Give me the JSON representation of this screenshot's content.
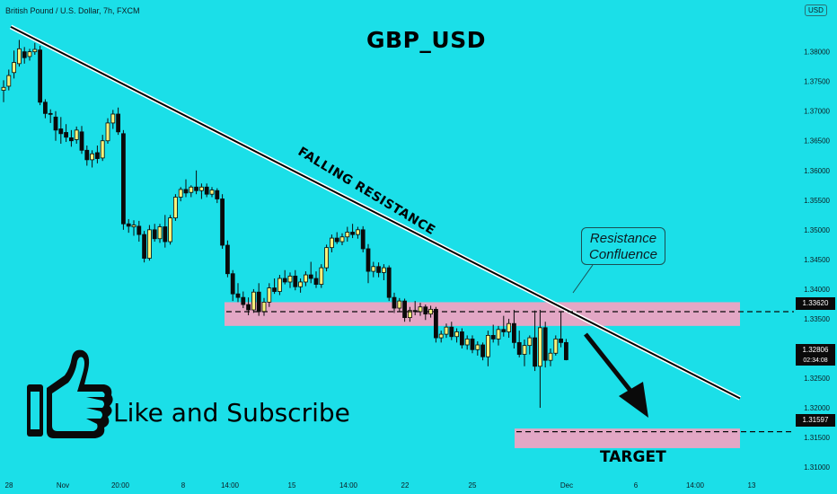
{
  "header": {
    "symbol": "British Pound / U.S. Dollar, 7h, FXCM",
    "currency": "USD",
    "title": "GBP_USD"
  },
  "annotations": {
    "falling_resistance": "FALLING RESISTANCE",
    "callout_line1": "Resistance",
    "callout_line2": "Confluence",
    "like": "Like and Subscribe",
    "target": "TARGET"
  },
  "price_tags": {
    "resistance": "1.33620",
    "current": "1.32806",
    "countdown": "02:34:08",
    "target": "1.31597"
  },
  "colors": {
    "background": "#1bdfe8",
    "candle_up": "#f7f27a",
    "candle_down": "#0a0a0a",
    "zone": "#e3a7c5",
    "trendline": "#000000"
  },
  "icons": [
    "thumbs-up-icon",
    "arrow-down-icon"
  ],
  "chart_data": {
    "type": "candlestick",
    "ylim": [
      1.3085,
      1.386
    ],
    "y_ticks": [
      "1.38000",
      "1.37500",
      "1.37000",
      "1.36500",
      "1.36000",
      "1.35500",
      "1.35000",
      "1.34500",
      "1.34000",
      "1.33500",
      "1.33000",
      "1.32500",
      "1.32000",
      "1.31500",
      "1.31000"
    ],
    "x_ticks": [
      "28",
      "Nov",
      "20:00",
      "8",
      "14:00",
      "15",
      "14:00",
      "22",
      "25",
      "Dec",
      "6",
      "14:00",
      "13"
    ],
    "resistance_level": 1.3362,
    "target_level": 1.31597,
    "current_price": 1.32806,
    "resistance_zone": [
      1.3338,
      1.3378
    ],
    "target_zone": [
      1.3132,
      1.3165
    ],
    "trendline": [
      {
        "bar": 0,
        "price": 1.3842
      },
      {
        "bar": 125,
        "price": 1.3216
      }
    ],
    "candles": [
      {
        "o": 1.3735,
        "h": 1.3752,
        "l": 1.3715,
        "c": 1.374
      },
      {
        "o": 1.3742,
        "h": 1.377,
        "l": 1.3735,
        "c": 1.376
      },
      {
        "o": 1.3765,
        "h": 1.3802,
        "l": 1.3755,
        "c": 1.3782
      },
      {
        "o": 1.378,
        "h": 1.382,
        "l": 1.3775,
        "c": 1.3805
      },
      {
        "o": 1.38,
        "h": 1.3808,
        "l": 1.378,
        "c": 1.379
      },
      {
        "o": 1.3792,
        "h": 1.3805,
        "l": 1.3785,
        "c": 1.38
      },
      {
        "o": 1.38,
        "h": 1.3815,
        "l": 1.3795,
        "c": 1.3804
      },
      {
        "o": 1.3803,
        "h": 1.381,
        "l": 1.371,
        "c": 1.3715
      },
      {
        "o": 1.3715,
        "h": 1.372,
        "l": 1.3688,
        "c": 1.3696
      },
      {
        "o": 1.3696,
        "h": 1.3703,
        "l": 1.368,
        "c": 1.3695
      },
      {
        "o": 1.369,
        "h": 1.37,
        "l": 1.365,
        "c": 1.3668
      },
      {
        "o": 1.367,
        "h": 1.369,
        "l": 1.3645,
        "c": 1.3662
      },
      {
        "o": 1.3664,
        "h": 1.3678,
        "l": 1.3648,
        "c": 1.3656
      },
      {
        "o": 1.3655,
        "h": 1.3668,
        "l": 1.364,
        "c": 1.365
      },
      {
        "o": 1.3652,
        "h": 1.3674,
        "l": 1.3645,
        "c": 1.3668
      },
      {
        "o": 1.3665,
        "h": 1.3675,
        "l": 1.3628,
        "c": 1.3634
      },
      {
        "o": 1.3634,
        "h": 1.3642,
        "l": 1.3608,
        "c": 1.3618
      },
      {
        "o": 1.3618,
        "h": 1.3634,
        "l": 1.3605,
        "c": 1.3628
      },
      {
        "o": 1.363,
        "h": 1.3642,
        "l": 1.3612,
        "c": 1.362
      },
      {
        "o": 1.3621,
        "h": 1.366,
        "l": 1.3616,
        "c": 1.365
      },
      {
        "o": 1.365,
        "h": 1.3688,
        "l": 1.3645,
        "c": 1.368
      },
      {
        "o": 1.368,
        "h": 1.3702,
        "l": 1.367,
        "c": 1.3695
      },
      {
        "o": 1.3695,
        "h": 1.3706,
        "l": 1.366,
        "c": 1.3665
      },
      {
        "o": 1.3662,
        "h": 1.3668,
        "l": 1.35,
        "c": 1.351
      },
      {
        "o": 1.351,
        "h": 1.3518,
        "l": 1.3495,
        "c": 1.3506
      },
      {
        "o": 1.3505,
        "h": 1.3516,
        "l": 1.349,
        "c": 1.3508
      },
      {
        "o": 1.3506,
        "h": 1.3515,
        "l": 1.348,
        "c": 1.3492
      },
      {
        "o": 1.3492,
        "h": 1.3498,
        "l": 1.3445,
        "c": 1.3452
      },
      {
        "o": 1.3452,
        "h": 1.3508,
        "l": 1.3448,
        "c": 1.35
      },
      {
        "o": 1.35,
        "h": 1.351,
        "l": 1.348,
        "c": 1.3485
      },
      {
        "o": 1.3485,
        "h": 1.351,
        "l": 1.3478,
        "c": 1.3505
      },
      {
        "o": 1.3505,
        "h": 1.3525,
        "l": 1.347,
        "c": 1.348
      },
      {
        "o": 1.348,
        "h": 1.3525,
        "l": 1.3475,
        "c": 1.352
      },
      {
        "o": 1.352,
        "h": 1.356,
        "l": 1.3515,
        "c": 1.3555
      },
      {
        "o": 1.3555,
        "h": 1.3572,
        "l": 1.3548,
        "c": 1.3568
      },
      {
        "o": 1.3568,
        "h": 1.3585,
        "l": 1.3555,
        "c": 1.3562
      },
      {
        "o": 1.3563,
        "h": 1.3575,
        "l": 1.3555,
        "c": 1.3572
      },
      {
        "o": 1.3572,
        "h": 1.36,
        "l": 1.356,
        "c": 1.3566
      },
      {
        "o": 1.3566,
        "h": 1.3578,
        "l": 1.3552,
        "c": 1.3572
      },
      {
        "o": 1.3572,
        "h": 1.3578,
        "l": 1.3555,
        "c": 1.356
      },
      {
        "o": 1.356,
        "h": 1.3572,
        "l": 1.3555,
        "c": 1.3567
      },
      {
        "o": 1.3566,
        "h": 1.357,
        "l": 1.3545,
        "c": 1.3552
      },
      {
        "o": 1.3552,
        "h": 1.356,
        "l": 1.3468,
        "c": 1.3474
      },
      {
        "o": 1.3474,
        "h": 1.3482,
        "l": 1.342,
        "c": 1.3426
      },
      {
        "o": 1.3426,
        "h": 1.3432,
        "l": 1.338,
        "c": 1.3392
      },
      {
        "o": 1.3392,
        "h": 1.341,
        "l": 1.3378,
        "c": 1.3386
      },
      {
        "o": 1.3386,
        "h": 1.3396,
        "l": 1.3368,
        "c": 1.3374
      },
      {
        "o": 1.3374,
        "h": 1.3386,
        "l": 1.3356,
        "c": 1.3365
      },
      {
        "o": 1.3365,
        "h": 1.34,
        "l": 1.336,
        "c": 1.3395
      },
      {
        "o": 1.3395,
        "h": 1.341,
        "l": 1.3355,
        "c": 1.3362
      },
      {
        "o": 1.3362,
        "h": 1.3385,
        "l": 1.3355,
        "c": 1.3378
      },
      {
        "o": 1.3378,
        "h": 1.341,
        "l": 1.337,
        "c": 1.3402
      },
      {
        "o": 1.3402,
        "h": 1.3418,
        "l": 1.3392,
        "c": 1.3396
      },
      {
        "o": 1.3396,
        "h": 1.3424,
        "l": 1.339,
        "c": 1.3418
      },
      {
        "o": 1.3418,
        "h": 1.3432,
        "l": 1.3408,
        "c": 1.3412
      },
      {
        "o": 1.3412,
        "h": 1.3428,
        "l": 1.3402,
        "c": 1.3422
      },
      {
        "o": 1.3422,
        "h": 1.3432,
        "l": 1.3398,
        "c": 1.3404
      },
      {
        "o": 1.3404,
        "h": 1.3418,
        "l": 1.3394,
        "c": 1.3412
      },
      {
        "o": 1.3412,
        "h": 1.343,
        "l": 1.3405,
        "c": 1.3424
      },
      {
        "o": 1.3424,
        "h": 1.3446,
        "l": 1.341,
        "c": 1.3418
      },
      {
        "o": 1.3418,
        "h": 1.343,
        "l": 1.3402,
        "c": 1.3408
      },
      {
        "o": 1.3408,
        "h": 1.3442,
        "l": 1.3402,
        "c": 1.3436
      },
      {
        "o": 1.3436,
        "h": 1.3475,
        "l": 1.343,
        "c": 1.347
      },
      {
        "o": 1.347,
        "h": 1.3492,
        "l": 1.3462,
        "c": 1.3486
      },
      {
        "o": 1.3486,
        "h": 1.3496,
        "l": 1.3476,
        "c": 1.348
      },
      {
        "o": 1.348,
        "h": 1.3494,
        "l": 1.3474,
        "c": 1.3488
      },
      {
        "o": 1.3488,
        "h": 1.3505,
        "l": 1.348,
        "c": 1.3496
      },
      {
        "o": 1.3496,
        "h": 1.351,
        "l": 1.3486,
        "c": 1.3492
      },
      {
        "o": 1.3492,
        "h": 1.3505,
        "l": 1.3485,
        "c": 1.35
      },
      {
        "o": 1.35,
        "h": 1.3506,
        "l": 1.3462,
        "c": 1.3468
      },
      {
        "o": 1.3468,
        "h": 1.3476,
        "l": 1.341,
        "c": 1.343
      },
      {
        "o": 1.343,
        "h": 1.3446,
        "l": 1.342,
        "c": 1.3438
      },
      {
        "o": 1.3438,
        "h": 1.3445,
        "l": 1.342,
        "c": 1.3428
      },
      {
        "o": 1.3428,
        "h": 1.3442,
        "l": 1.3415,
        "c": 1.3436
      },
      {
        "o": 1.3436,
        "h": 1.344,
        "l": 1.338,
        "c": 1.3386
      },
      {
        "o": 1.3386,
        "h": 1.3394,
        "l": 1.336,
        "c": 1.3368
      },
      {
        "o": 1.3368,
        "h": 1.3385,
        "l": 1.3362,
        "c": 1.338
      },
      {
        "o": 1.338,
        "h": 1.3384,
        "l": 1.3345,
        "c": 1.3352
      },
      {
        "o": 1.3352,
        "h": 1.337,
        "l": 1.3345,
        "c": 1.3364
      },
      {
        "o": 1.3364,
        "h": 1.338,
        "l": 1.3356,
        "c": 1.3362
      },
      {
        "o": 1.3362,
        "h": 1.3377,
        "l": 1.3355,
        "c": 1.337
      },
      {
        "o": 1.337,
        "h": 1.3374,
        "l": 1.3348,
        "c": 1.3358
      },
      {
        "o": 1.3358,
        "h": 1.3372,
        "l": 1.3352,
        "c": 1.3366
      },
      {
        "o": 1.3366,
        "h": 1.337,
        "l": 1.331,
        "c": 1.3318
      },
      {
        "o": 1.3318,
        "h": 1.333,
        "l": 1.331,
        "c": 1.3324
      },
      {
        "o": 1.3324,
        "h": 1.3342,
        "l": 1.3318,
        "c": 1.3336
      },
      {
        "o": 1.3336,
        "h": 1.3345,
        "l": 1.3314,
        "c": 1.332
      },
      {
        "o": 1.332,
        "h": 1.3334,
        "l": 1.331,
        "c": 1.3328
      },
      {
        "o": 1.3328,
        "h": 1.3334,
        "l": 1.33,
        "c": 1.3306
      },
      {
        "o": 1.3306,
        "h": 1.3322,
        "l": 1.3298,
        "c": 1.3316
      },
      {
        "o": 1.3316,
        "h": 1.3322,
        "l": 1.3292,
        "c": 1.3298
      },
      {
        "o": 1.3298,
        "h": 1.3312,
        "l": 1.3288,
        "c": 1.3306
      },
      {
        "o": 1.3306,
        "h": 1.331,
        "l": 1.328,
        "c": 1.3286
      },
      {
        "o": 1.3286,
        "h": 1.333,
        "l": 1.327,
        "c": 1.3322
      },
      {
        "o": 1.3322,
        "h": 1.334,
        "l": 1.331,
        "c": 1.3316
      },
      {
        "o": 1.3316,
        "h": 1.3338,
        "l": 1.3305,
        "c": 1.3332
      },
      {
        "o": 1.3332,
        "h": 1.3355,
        "l": 1.332,
        "c": 1.3328
      },
      {
        "o": 1.3328,
        "h": 1.335,
        "l": 1.3318,
        "c": 1.3342
      },
      {
        "o": 1.3342,
        "h": 1.3365,
        "l": 1.33,
        "c": 1.331
      },
      {
        "o": 1.331,
        "h": 1.333,
        "l": 1.3285,
        "c": 1.329
      },
      {
        "o": 1.329,
        "h": 1.3315,
        "l": 1.327,
        "c": 1.3305
      },
      {
        "o": 1.3305,
        "h": 1.3322,
        "l": 1.329,
        "c": 1.3318
      },
      {
        "o": 1.3318,
        "h": 1.3364,
        "l": 1.3262,
        "c": 1.327
      },
      {
        "o": 1.327,
        "h": 1.3365,
        "l": 1.32,
        "c": 1.3335
      },
      {
        "o": 1.3335,
        "h": 1.3345,
        "l": 1.3268,
        "c": 1.328
      },
      {
        "o": 1.328,
        "h": 1.33,
        "l": 1.327,
        "c": 1.3292
      },
      {
        "o": 1.3292,
        "h": 1.3322,
        "l": 1.3288,
        "c": 1.3316
      },
      {
        "o": 1.3316,
        "h": 1.3362,
        "l": 1.3302,
        "c": 1.331
      },
      {
        "o": 1.331,
        "h": 1.3316,
        "l": 1.328,
        "c": 1.3281
      }
    ]
  }
}
